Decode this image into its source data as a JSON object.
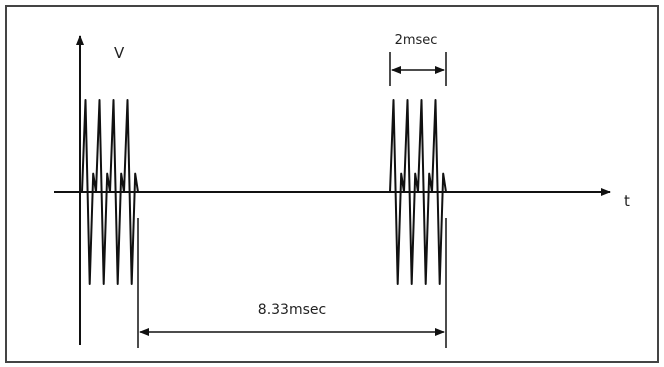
{
  "diagram": {
    "y_axis_label": "V",
    "x_axis_label": "t",
    "burst_width_label": "2msec",
    "period_label": "8.33msec"
  }
}
